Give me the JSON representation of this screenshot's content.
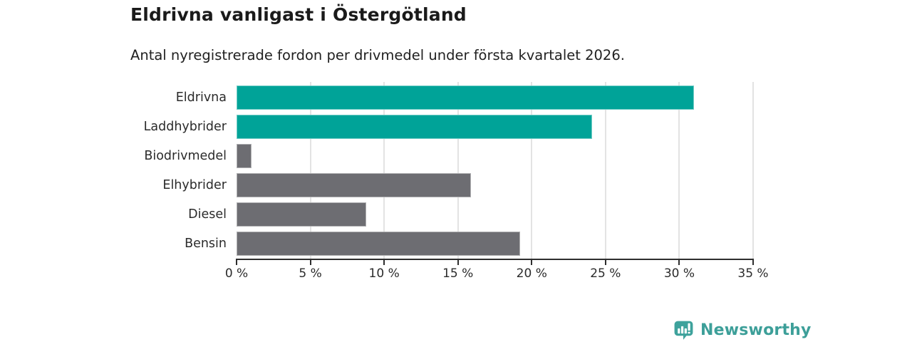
{
  "title": "Eldrivna vanligast i Östergötland",
  "subtitle": "Antal nyregistrerade fordon per drivmedel under första kvartalet 2026.",
  "chart_data": {
    "type": "bar",
    "orientation": "horizontal",
    "categories": [
      "Eldrivna",
      "Laddhybrider",
      "Biodrivmedel",
      "Elhybrider",
      "Diesel",
      "Bensin"
    ],
    "values": [
      31,
      24.1,
      1,
      15.9,
      8.8,
      19.2
    ],
    "bar_colors": [
      "#00a398",
      "#00a398",
      "#6d6d72",
      "#6d6d72",
      "#6d6d72",
      "#6d6d72"
    ],
    "x_tick_values": [
      0,
      5,
      10,
      15,
      20,
      25,
      30,
      35
    ],
    "x_tick_labels": [
      "0 %",
      "5 %",
      "10 %",
      "15 %",
      "20 %",
      "25 %",
      "30 %",
      "35 %"
    ],
    "xlim": [
      0,
      35
    ],
    "xlabel": "",
    "ylabel": "",
    "grid": true,
    "legend": "none"
  },
  "colors": {
    "accent_teal": "#00a398",
    "neutral_gray": "#6d6d72",
    "axis": "#2e2e2e",
    "gridline": "#e3e3e3",
    "text": "#2b2b2b",
    "logo": "#3d9f99",
    "background": "#ffffff"
  },
  "branding": {
    "logo_text": "Newsworthy",
    "logo_icon": "bar-chart-speech-bubble-icon"
  }
}
